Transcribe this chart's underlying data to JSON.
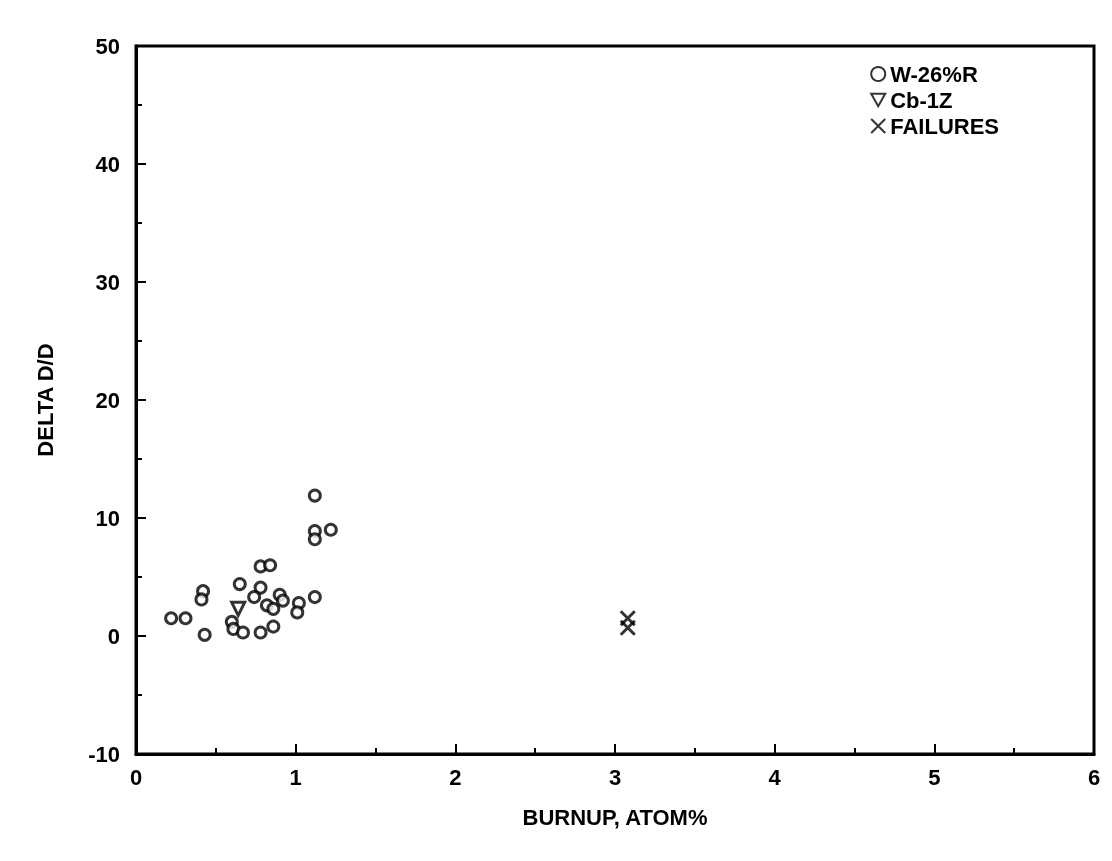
{
  "chart_data": {
    "type": "scatter",
    "xlabel": "BURNUP, ATOM%",
    "ylabel": "DELTA D/D",
    "xlim": [
      0,
      6
    ],
    "xticks": [
      0,
      1,
      2,
      3,
      4,
      5,
      6
    ],
    "ylim": [
      -10,
      50
    ],
    "yticks": [
      -10,
      0,
      10,
      20,
      30,
      40,
      50
    ],
    "grid": false,
    "legend": "top right",
    "series": [
      {
        "name": "W-26%R",
        "color": "#000000",
        "marker": "circle",
        "x": [
          1.12,
          1.12,
          1.12,
          1.22,
          0.78,
          0.84,
          0.42,
          0.41,
          0.65,
          0.78,
          0.74,
          0.9,
          0.92,
          0.82,
          0.86,
          1.02,
          1.01,
          1.12,
          0.22,
          0.31,
          0.43,
          0.6,
          0.61,
          0.67,
          0.78,
          0.86
        ],
        "values": [
          11.9,
          8.9,
          8.2,
          9.0,
          5.9,
          6.0,
          3.8,
          3.1,
          4.4,
          4.1,
          3.3,
          3.5,
          3.0,
          2.6,
          2.3,
          2.8,
          2.0,
          3.3,
          1.5,
          1.5,
          0.1,
          1.2,
          0.6,
          0.3,
          0.3,
          0.8
        ]
      },
      {
        "name": "Cb-1Z",
        "color": "#000000",
        "marker": "triangle",
        "x": [
          0.64
        ],
        "values": [
          2.3
        ]
      },
      {
        "name": "FAILURES",
        "color": "#000000",
        "marker": "cross",
        "x": [
          3.08,
          3.08
        ],
        "values": [
          1.5,
          0.7
        ]
      }
    ]
  }
}
